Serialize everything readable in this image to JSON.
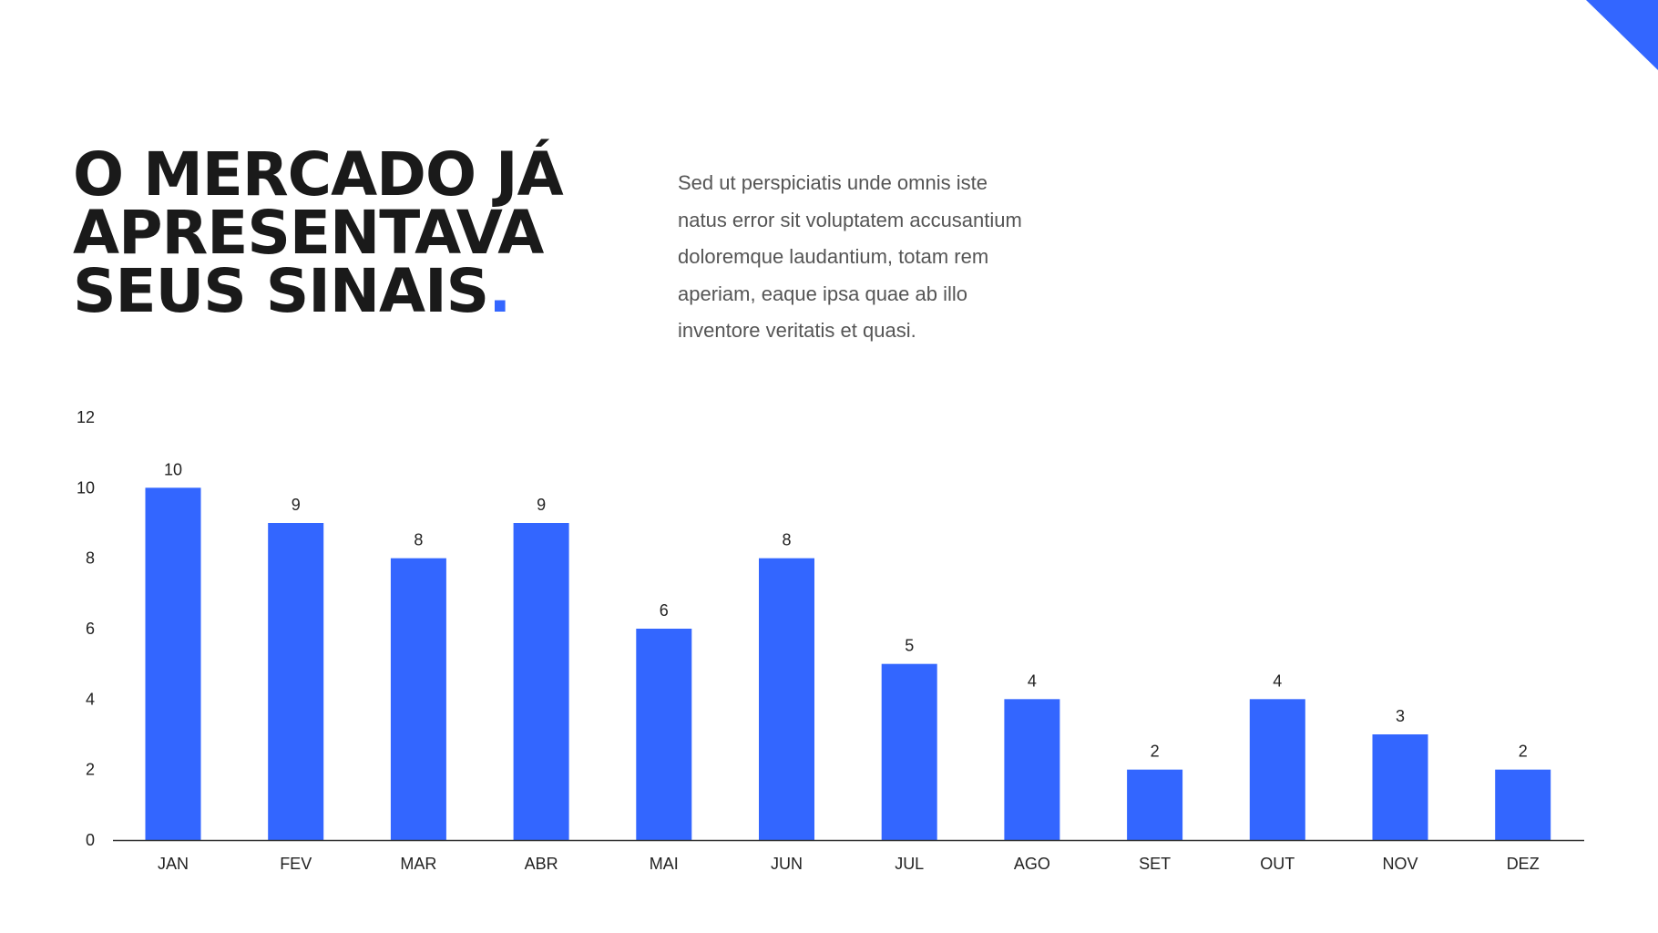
{
  "colors": {
    "accent": "#3366ff",
    "text": "#1a1a1a",
    "body": "#555555"
  },
  "title": {
    "line1": "O MERCADO JÁ",
    "line2": "APRESENTAVA",
    "line3": "SEUS SINAIS",
    "dot": "."
  },
  "paragraph": {
    "lines": [
      "Sed ut perspiciatis unde omnis iste",
      "natus error sit voluptatem accusantium",
      "doloremque laudantium, totam rem",
      "aperiam, eaque ipsa quae ab illo",
      "inventore veritatis et quasi."
    ]
  },
  "chart_data": {
    "type": "bar",
    "title": "",
    "xlabel": "",
    "ylabel": "",
    "categories": [
      "JAN",
      "FEV",
      "MAR",
      "ABR",
      "MAI",
      "JUN",
      "JUL",
      "AGO",
      "SET",
      "OUT",
      "NOV",
      "DEZ"
    ],
    "values": [
      10,
      9,
      8,
      9,
      6,
      8,
      5,
      4,
      2,
      4,
      3,
      2
    ],
    "ylim": [
      0,
      12
    ],
    "yticks": [
      0,
      2,
      4,
      6,
      8,
      10,
      12
    ],
    "grid": false,
    "data_labels": true,
    "legend": "none"
  }
}
